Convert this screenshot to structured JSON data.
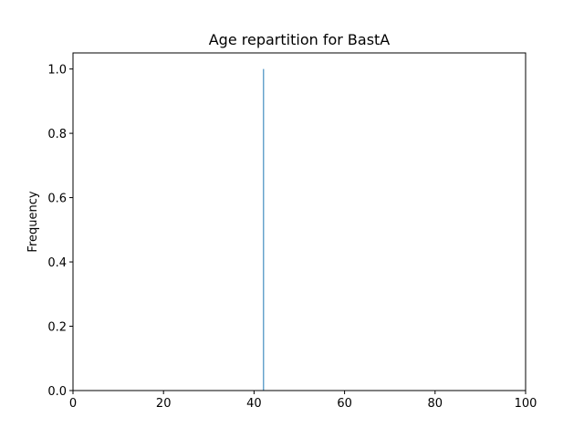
{
  "chart_data": {
    "type": "bar",
    "title": "Age repartition for BastA",
    "xlabel": "",
    "ylabel": "Frequency",
    "xlim": [
      0,
      100
    ],
    "ylim": [
      0,
      1.05
    ],
    "xticks": [
      0,
      20,
      40,
      60,
      80,
      100
    ],
    "xtick_labels": [
      "0",
      "20",
      "40",
      "60",
      "80",
      "100"
    ],
    "yticks": [
      0,
      0.2,
      0.4,
      0.6,
      0.8,
      1.0
    ],
    "ytick_labels": [
      "0.0",
      "0.2",
      "0.4",
      "0.6",
      "0.8",
      "1.0"
    ],
    "grid": false,
    "legend": "none",
    "bar_color": "#1f77b4",
    "bars": [
      {
        "x_start": 42.0,
        "x_end": 42.2,
        "value": 1.0
      }
    ]
  }
}
